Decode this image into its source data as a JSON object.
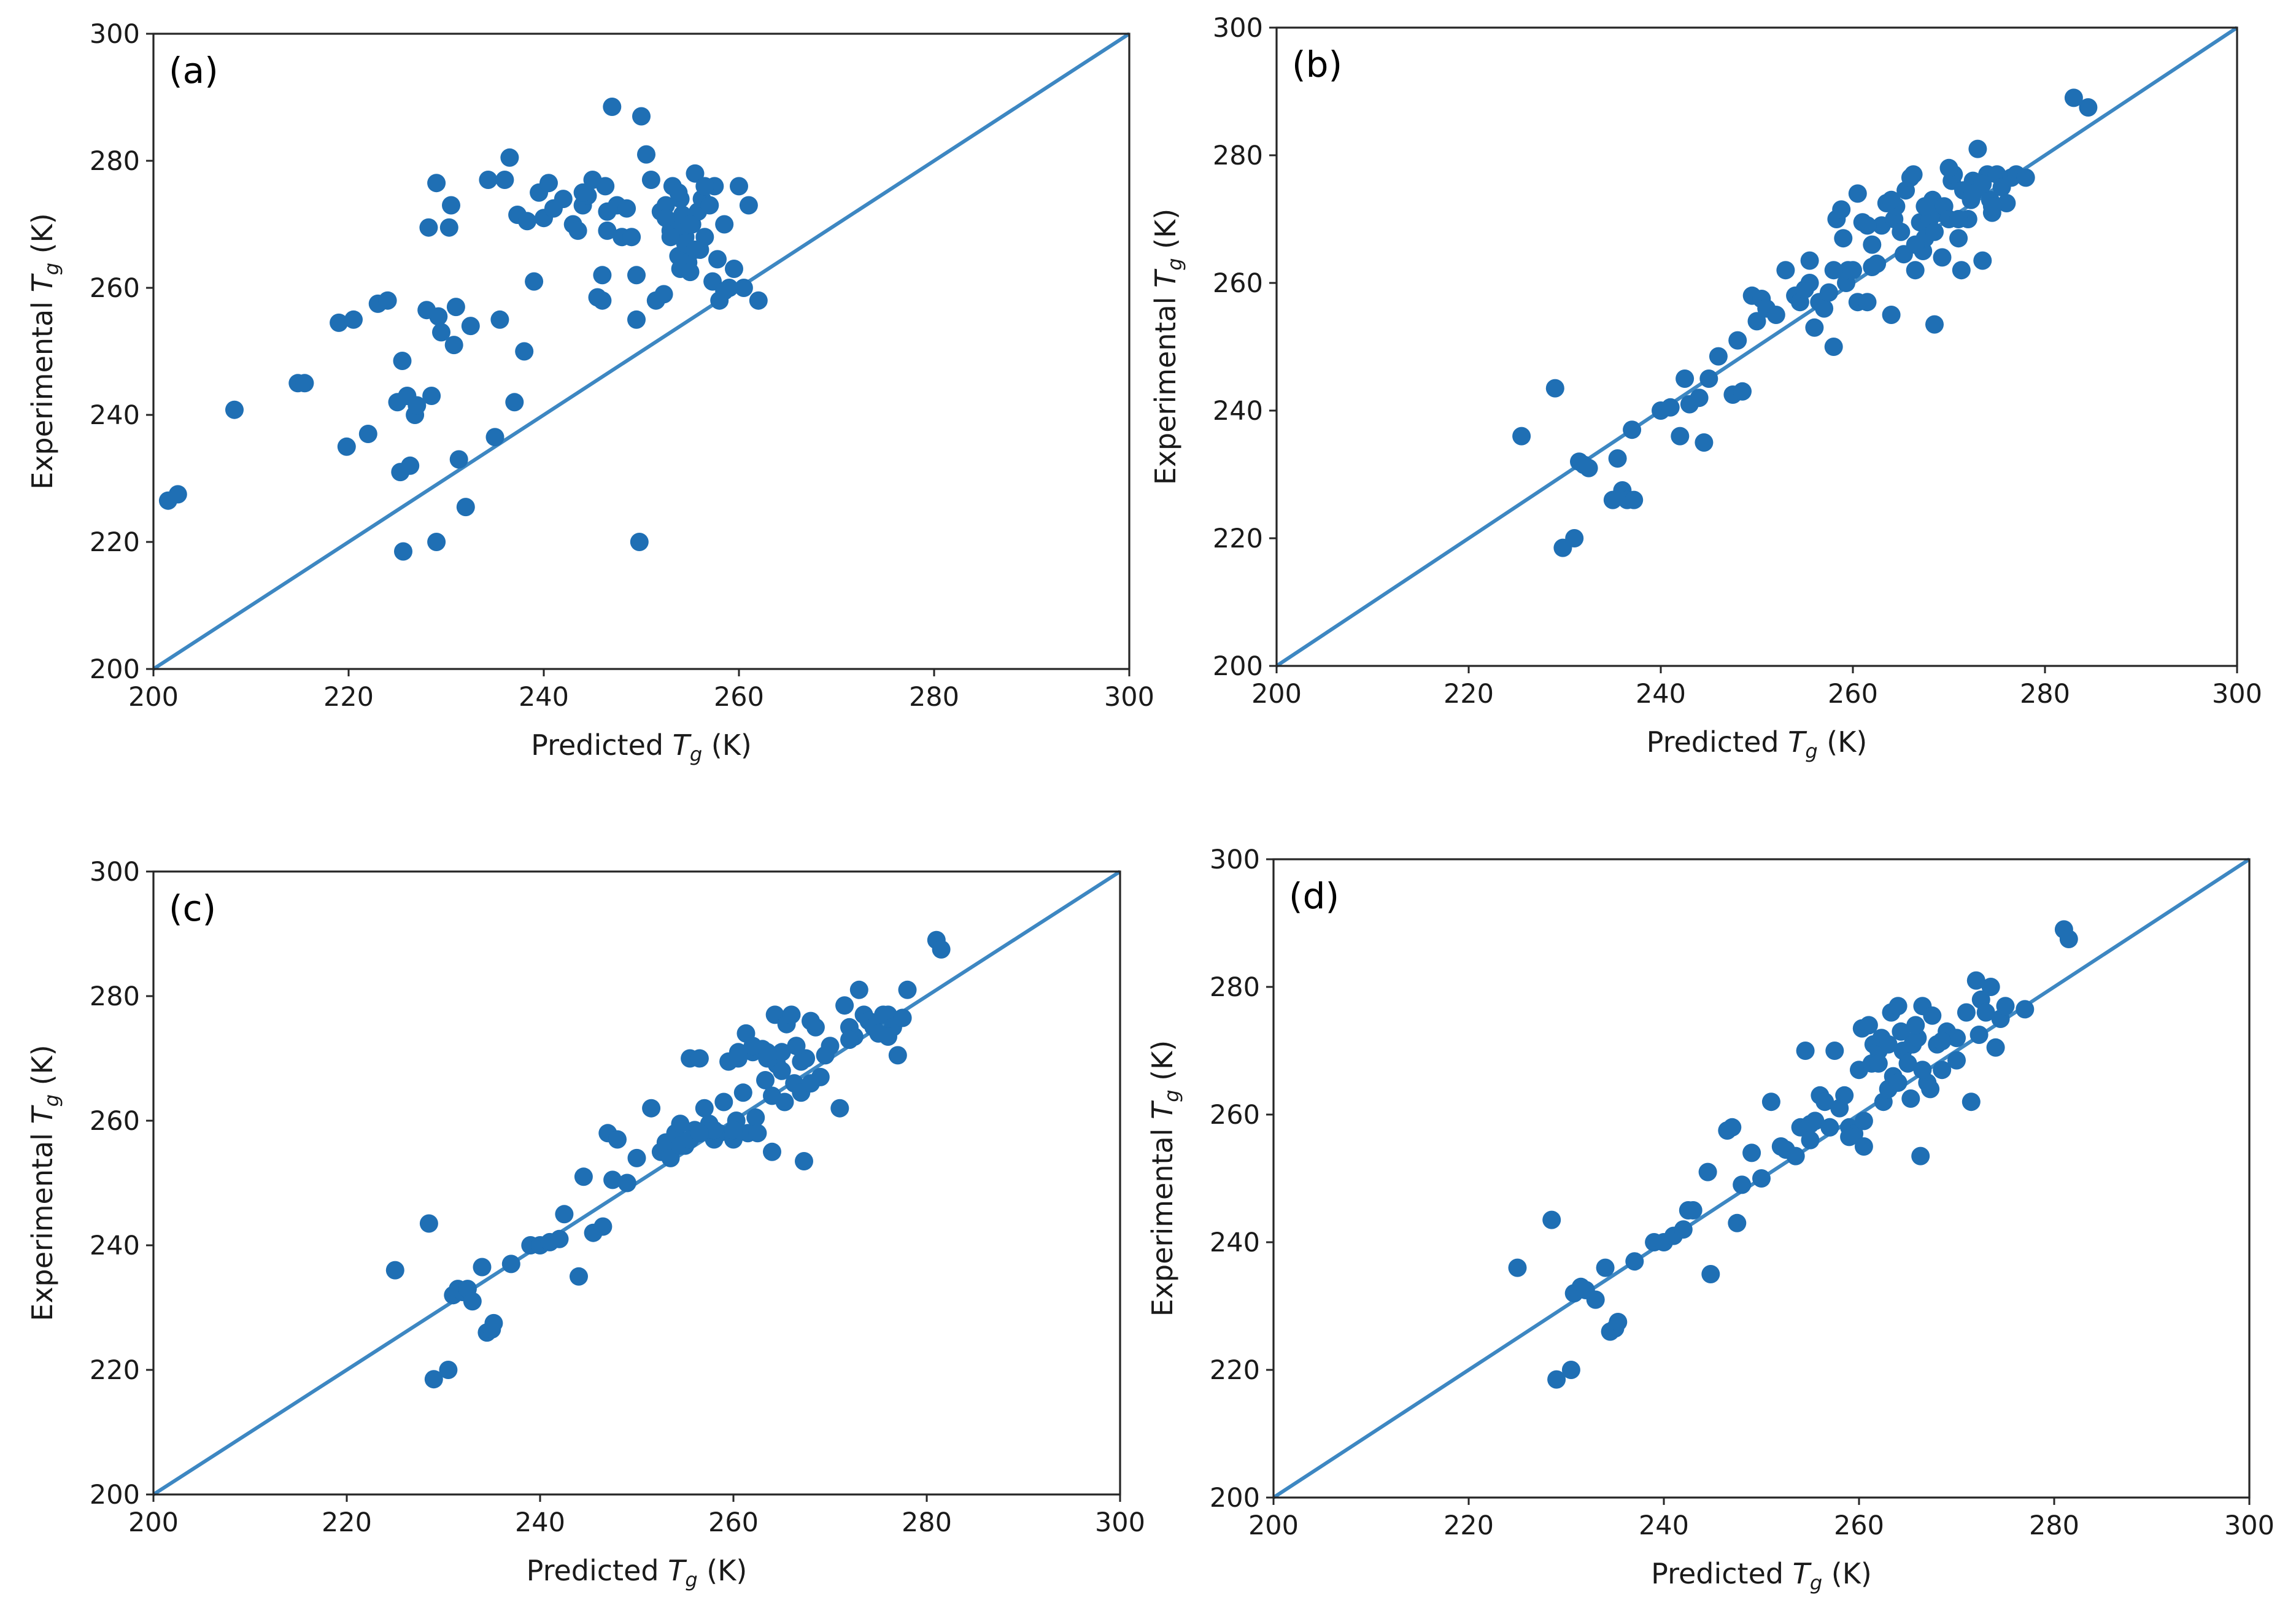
{
  "chart_data": [
    {
      "type": "scatter",
      "panel_label": "(a)",
      "xlabel": {
        "prefix": "Predicted ",
        "italic": "T",
        "sub": "g",
        "suffix": " (K)"
      },
      "ylabel": {
        "prefix": "Experimental ",
        "italic": "T",
        "sub": "g",
        "suffix": " (K)"
      },
      "xlim": [
        200,
        300
      ],
      "ylim": [
        200,
        300
      ],
      "xticks": [
        "200",
        "220",
        "240",
        "260",
        "280",
        "300"
      ],
      "yticks": [
        "200",
        "220",
        "240",
        "260",
        "280",
        "300"
      ],
      "reference_line": "y = x",
      "color": "#1f6fb4",
      "series": [
        {
          "x": [
            201.5,
            202.5,
            208.3,
            214.8,
            215.5,
            219.0,
            219.8,
            220.5,
            222.0,
            223.0,
            224.0,
            225.0,
            225.3,
            225.5,
            225.6,
            226.0,
            226.3,
            226.8,
            227.0,
            228.0,
            228.2,
            228.5,
            229.0,
            229.2,
            229.5,
            230.3,
            230.5,
            230.8,
            231.0,
            231.3,
            232.0,
            232.5,
            234.3,
            235.0,
            235.5,
            236.0,
            236.5,
            237.0,
            237.3,
            238.0,
            238.3,
            239.0,
            239.5,
            240.0,
            240.5,
            241.0,
            242.0,
            243.0,
            243.5,
            244.0,
            244.5,
            245.0,
            245.5,
            246.0,
            246.3,
            246.5,
            247.0,
            247.5,
            248.0,
            248.5,
            249.0,
            249.5,
            250.0,
            250.5,
            251.0,
            251.5,
            252.0,
            252.3,
            252.5,
            253.0,
            253.2,
            253.5,
            253.8,
            254.0,
            254.2,
            254.5,
            254.8,
            255.0,
            255.2,
            255.5,
            255.8,
            256.0,
            256.2,
            256.5,
            257.0,
            257.3,
            257.5,
            258.0,
            258.5,
            259.0,
            259.5,
            260.0,
            260.5,
            261.0,
            262.0,
            246.0,
            249.8,
            249.5,
            254.0,
            252.5,
            246.5,
            254.5,
            255.0,
            256.5,
            258.5,
            229.0,
            244.0,
            253.0,
            255.5,
            253.8,
            257.8
          ],
          "y": [
            226.5,
            227.5,
            240.8,
            245.0,
            245.0,
            254.5,
            235.0,
            255.0,
            237.0,
            257.5,
            258.0,
            242.0,
            231.0,
            248.5,
            218.5,
            243.0,
            232.0,
            240.0,
            241.5,
            256.5,
            269.5,
            243.0,
            276.5,
            255.5,
            253.0,
            269.5,
            273.0,
            251.0,
            257.0,
            233.0,
            225.5,
            254.0,
            277.0,
            236.5,
            255.0,
            277.0,
            280.5,
            242.0,
            271.5,
            250.0,
            270.5,
            261.0,
            275.0,
            271.0,
            276.5,
            272.5,
            274.0,
            270.0,
            269.0,
            273.0,
            274.5,
            277.0,
            258.5,
            262.0,
            276.0,
            272.0,
            288.5,
            273.0,
            268.0,
            272.5,
            268.0,
            262.0,
            287.0,
            281.0,
            277.0,
            258.0,
            272.0,
            259.0,
            273.0,
            269.0,
            276.0,
            270.0,
            265.0,
            263.0,
            271.5,
            268.0,
            264.0,
            262.5,
            270.0,
            278.0,
            272.0,
            266.0,
            274.0,
            268.0,
            273.0,
            261.0,
            276.0,
            258.0,
            270.0,
            260.0,
            263.0,
            276.0,
            260.0,
            273.0,
            258.0,
            258.0,
            220.0,
            255.0,
            274.0,
            271.0,
            269.0,
            267.0,
            270.0,
            276.0,
            259.5,
            220.0,
            275.0,
            268.0,
            266.0,
            275.0,
            264.5
          ]
        }
      ]
    },
    {
      "type": "scatter",
      "panel_label": "(b)",
      "xlabel": {
        "prefix": "Predicted ",
        "italic": "T",
        "sub": "g",
        "suffix": " (K)"
      },
      "ylabel": {
        "prefix": "Experimental ",
        "italic": "T",
        "sub": "g",
        "suffix": " (K)"
      },
      "xlim": [
        200,
        300
      ],
      "ylim": [
        200,
        300
      ],
      "xticks": [
        "200",
        "220",
        "240",
        "260",
        "280",
        "300"
      ],
      "yticks": [
        "200",
        "220",
        "240",
        "260",
        "280",
        "300"
      ],
      "reference_line": "y = x",
      "color": "#1f6fb4",
      "series": [
        {
          "x": [
            225.5,
            229.0,
            229.8,
            231.0,
            231.5,
            232.0,
            232.5,
            235.0,
            235.5,
            236.0,
            236.5,
            237.0,
            237.2,
            240.0,
            241.0,
            242.0,
            242.5,
            243.0,
            244.0,
            244.5,
            245.0,
            246.0,
            247.5,
            248.0,
            248.5,
            249.5,
            250.0,
            250.5,
            251.0,
            252.0,
            253.0,
            254.0,
            254.5,
            255.0,
            255.5,
            256.0,
            256.5,
            257.0,
            257.5,
            258.0,
            258.3,
            258.8,
            259.0,
            259.3,
            259.5,
            260.0,
            260.5,
            261.0,
            261.5,
            262.0,
            262.5,
            263.0,
            263.5,
            264.0,
            264.3,
            264.5,
            265.0,
            265.3,
            265.5,
            266.0,
            266.3,
            266.5,
            267.0,
            267.3,
            267.5,
            268.0,
            268.3,
            268.5,
            269.0,
            269.3,
            269.5,
            270.0,
            270.3,
            270.5,
            271.0,
            271.3,
            271.5,
            272.0,
            272.3,
            272.5,
            273.0,
            273.3,
            273.5,
            274.0,
            274.3,
            274.5,
            275.0,
            275.5,
            276.0,
            276.5,
            277.0,
            278.0,
            283.0,
            284.5,
            267.5,
            271.0,
            273.5,
            258.0,
            264.0,
            260.5,
            261.5,
            266.5,
            270.0,
            272.5,
            255.5,
            262.0,
            268.5,
            274.5
          ],
          "y": [
            236.0,
            243.5,
            218.5,
            220.0,
            232.0,
            231.5,
            231.0,
            226.0,
            232.5,
            227.5,
            226.0,
            237.0,
            226.0,
            240.0,
            240.5,
            236.0,
            245.0,
            241.0,
            242.0,
            235.0,
            245.0,
            248.5,
            242.5,
            251.0,
            243.0,
            258.0,
            254.0,
            257.5,
            256.0,
            255.0,
            262.0,
            258.0,
            257.0,
            259.0,
            263.5,
            253.0,
            257.0,
            256.0,
            258.5,
            250.0,
            270.0,
            271.5,
            267.0,
            260.0,
            262.0,
            262.0,
            257.0,
            269.5,
            257.0,
            262.5,
            263.0,
            269.0,
            272.5,
            255.0,
            270.0,
            272.0,
            268.0,
            264.5,
            274.5,
            276.5,
            277.0,
            262.0,
            269.5,
            265.0,
            267.0,
            270.0,
            273.0,
            253.5,
            271.0,
            264.0,
            272.0,
            270.0,
            276.0,
            277.0,
            267.0,
            262.0,
            274.5,
            270.0,
            273.0,
            276.0,
            281.0,
            275.0,
            263.5,
            277.0,
            273.0,
            271.0,
            277.0,
            275.0,
            272.5,
            276.5,
            277.0,
            276.5,
            289.0,
            287.5,
            272.0,
            270.0,
            275.5,
            262.0,
            273.0,
            274.0,
            269.0,
            266.0,
            278.0,
            274.0,
            260.0,
            266.0,
            268.0,
            272.0
          ]
        }
      ]
    },
    {
      "type": "scatter",
      "panel_label": "(c)",
      "xlabel": {
        "prefix": "Predicted ",
        "italic": "T",
        "sub": "g",
        "suffix": " (K)"
      },
      "ylabel": {
        "prefix": "Experimental ",
        "italic": "T",
        "sub": "g",
        "suffix": " (K)"
      },
      "xlim": [
        200,
        300
      ],
      "ylim": [
        200,
        300
      ],
      "xticks": [
        "200",
        "220",
        "240",
        "260",
        "280",
        "300"
      ],
      "yticks": [
        "200",
        "220",
        "240",
        "260",
        "280",
        "300"
      ],
      "reference_line": "y = x",
      "color": "#1f6fb4",
      "series": [
        {
          "x": [
            225.0,
            228.5,
            229.0,
            230.5,
            231.0,
            231.5,
            232.0,
            232.5,
            233.0,
            234.0,
            234.5,
            235.0,
            235.2,
            237.0,
            239.0,
            240.0,
            241.0,
            242.0,
            242.5,
            244.0,
            244.5,
            245.5,
            246.5,
            247.0,
            247.5,
            248.0,
            249.0,
            250.0,
            251.5,
            252.5,
            253.0,
            253.5,
            254.0,
            254.5,
            255.0,
            255.5,
            256.0,
            256.5,
            257.0,
            257.5,
            258.0,
            258.5,
            259.0,
            259.5,
            260.0,
            260.3,
            260.5,
            261.0,
            261.3,
            261.5,
            262.0,
            262.3,
            262.5,
            263.0,
            263.3,
            263.5,
            264.0,
            264.3,
            264.5,
            265.0,
            265.3,
            265.5,
            266.0,
            266.3,
            266.5,
            267.0,
            267.3,
            267.5,
            268.0,
            268.5,
            269.0,
            270.0,
            271.0,
            271.5,
            272.0,
            272.5,
            273.0,
            273.5,
            274.0,
            274.5,
            275.0,
            275.5,
            276.0,
            276.5,
            277.0,
            277.5,
            278.0,
            281.0,
            281.5,
            265.0,
            267.0,
            263.5,
            260.5,
            262.0,
            258.0,
            254.5,
            255.5,
            256.5,
            260.0,
            266.5,
            269.5,
            272.0,
            276.0,
            264.0,
            268.0
          ],
          "y": [
            236.0,
            243.5,
            218.5,
            220.0,
            232.0,
            233.0,
            232.5,
            233.0,
            231.0,
            236.5,
            226.0,
            226.5,
            227.5,
            237.0,
            240.0,
            240.0,
            240.5,
            241.0,
            245.0,
            235.0,
            251.0,
            242.0,
            243.0,
            258.0,
            250.5,
            257.0,
            250.0,
            254.0,
            262.0,
            255.0,
            256.5,
            254.0,
            258.0,
            259.5,
            256.0,
            270.0,
            258.5,
            270.0,
            262.0,
            259.5,
            257.0,
            258.0,
            263.0,
            269.5,
            257.0,
            260.0,
            270.0,
            264.5,
            274.0,
            258.0,
            271.0,
            260.5,
            258.0,
            271.5,
            266.5,
            270.0,
            255.0,
            277.0,
            269.0,
            268.0,
            263.0,
            275.5,
            277.0,
            266.0,
            272.0,
            264.5,
            253.5,
            270.0,
            276.0,
            275.0,
            267.0,
            272.0,
            262.0,
            278.5,
            275.0,
            273.5,
            281.0,
            277.0,
            276.0,
            275.0,
            274.0,
            277.0,
            277.0,
            275.0,
            270.5,
            276.5,
            281.0,
            289.0,
            287.5,
            271.0,
            269.5,
            271.0,
            271.0,
            272.0,
            258.5,
            256.0,
            257.0,
            258.0,
            258.5,
            272.0,
            270.5,
            273.0,
            273.5,
            264.0,
            266.0
          ]
        }
      ]
    },
    {
      "type": "scatter",
      "panel_label": "(d)",
      "xlabel": {
        "prefix": "Predicted ",
        "italic": "T",
        "sub": "g",
        "suffix": " (K)"
      },
      "ylabel": {
        "prefix": "Experimental ",
        "italic": "T",
        "sub": "g",
        "suffix": " (K)"
      },
      "xlim": [
        200,
        300
      ],
      "ylim": [
        200,
        300
      ],
      "xticks": [
        "200",
        "220",
        "240",
        "260",
        "280",
        "300"
      ],
      "yticks": [
        "200",
        "220",
        "240",
        "260",
        "280",
        "300"
      ],
      "reference_line": "y = x",
      "color": "#1f6fb4",
      "series": [
        {
          "x": [
            225.0,
            228.5,
            229.0,
            230.5,
            230.8,
            231.5,
            232.0,
            233.0,
            234.0,
            234.5,
            235.0,
            235.3,
            237.0,
            239.0,
            240.0,
            241.0,
            242.0,
            242.5,
            243.0,
            244.5,
            244.8,
            246.5,
            247.0,
            247.5,
            248.0,
            249.0,
            250.0,
            251.0,
            252.0,
            252.5,
            253.5,
            254.0,
            254.5,
            255.0,
            255.5,
            256.0,
            256.5,
            257.0,
            257.5,
            258.0,
            258.5,
            259.0,
            259.5,
            260.0,
            260.3,
            260.5,
            261.0,
            261.3,
            261.5,
            262.0,
            262.3,
            262.5,
            263.0,
            263.3,
            263.5,
            264.0,
            264.3,
            264.5,
            265.0,
            265.3,
            265.5,
            266.0,
            266.3,
            266.5,
            267.0,
            267.3,
            267.5,
            268.0,
            268.5,
            269.0,
            270.0,
            271.0,
            271.5,
            272.0,
            272.5,
            273.0,
            273.5,
            274.0,
            274.5,
            275.0,
            277.0,
            281.0,
            281.5,
            265.8,
            262.0,
            266.5,
            263.0,
            270.0,
            259.0,
            257.0,
            255.0,
            260.5,
            264.0,
            272.3,
            268.5
          ],
          "y": [
            236.0,
            243.5,
            218.5,
            220.0,
            232.0,
            233.0,
            232.5,
            231.0,
            236.0,
            226.0,
            226.5,
            227.5,
            237.0,
            240.0,
            240.0,
            241.0,
            242.0,
            245.0,
            245.0,
            251.0,
            235.0,
            257.5,
            258.0,
            243.0,
            249.0,
            254.0,
            250.0,
            262.0,
            255.0,
            254.5,
            253.5,
            258.0,
            270.0,
            258.5,
            259.0,
            263.0,
            262.0,
            258.0,
            270.0,
            261.0,
            263.0,
            258.0,
            257.0,
            267.0,
            273.5,
            255.0,
            274.0,
            268.0,
            271.0,
            270.0,
            272.0,
            262.0,
            264.0,
            276.0,
            266.0,
            277.0,
            273.0,
            270.0,
            268.0,
            262.5,
            271.0,
            272.0,
            253.5,
            277.0,
            265.0,
            264.0,
            275.5,
            271.0,
            267.0,
            273.0,
            272.0,
            276.0,
            262.0,
            281.0,
            278.0,
            276.0,
            280.0,
            270.5,
            275.0,
            277.0,
            276.5,
            289.0,
            287.5,
            274.0,
            268.0,
            267.0,
            271.0,
            268.5,
            256.5,
            258.0,
            256.0,
            259.0,
            265.0,
            272.5,
            271.5
          ]
        }
      ]
    }
  ]
}
